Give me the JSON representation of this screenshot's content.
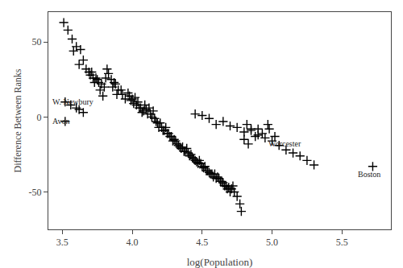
{
  "chart_data": {
    "type": "scatter",
    "xlabel": "log(Population)",
    "ylabel": "Difference Between Ranks",
    "xlim": [
      3.4,
      5.85
    ],
    "ylim": [
      -75,
      70
    ],
    "xticks": [
      3.5,
      {
        "value": 4.0,
        "label": "4.0"
      },
      4.5,
      {
        "value": 5.0,
        "label": "5.0"
      },
      5.5
    ],
    "yticks": [
      -50,
      0,
      50
    ],
    "grid": false,
    "marker": "plus",
    "color": "black",
    "annotations": [
      {
        "text": "W. Newbury",
        "x": 3.42,
        "y": 10
      },
      {
        "text": "Avon",
        "x": 3.42,
        "y": -3
      },
      {
        "text": "Worcester",
        "x": 4.96,
        "y": -18
      },
      {
        "text": "Boston",
        "x": 5.6,
        "y": -38
      }
    ],
    "x": [
      3.51,
      3.54,
      3.57,
      3.6,
      3.58,
      3.63,
      3.65,
      3.62,
      3.67,
      3.69,
      3.7,
      3.72,
      3.71,
      3.74,
      3.73,
      3.75,
      3.76,
      3.78,
      3.77,
      3.8,
      3.79,
      3.52,
      3.56,
      3.6,
      3.52,
      3.62,
      3.65,
      3.82,
      3.83,
      3.81,
      3.85,
      3.87,
      3.86,
      3.88,
      3.9,
      3.89,
      3.92,
      3.93,
      3.95,
      3.97,
      3.98,
      3.99,
      4.0,
      4.01,
      4.02,
      4.03,
      4.04,
      4.05,
      4.06,
      4.07,
      4.08,
      4.09,
      4.1,
      4.11,
      4.12,
      4.13,
      4.14,
      4.15,
      4.16,
      4.17,
      4.18,
      4.19,
      4.2,
      4.21,
      4.22,
      4.23,
      4.24,
      4.25,
      4.26,
      4.27,
      4.28,
      4.29,
      4.3,
      4.31,
      4.32,
      4.33,
      4.34,
      4.35,
      4.36,
      4.37,
      4.38,
      4.39,
      4.4,
      4.41,
      4.42,
      4.43,
      4.44,
      4.45,
      4.46,
      4.47,
      4.48,
      4.49,
      4.5,
      4.51,
      4.52,
      4.53,
      4.54,
      4.55,
      4.56,
      4.57,
      4.58,
      4.59,
      4.6,
      4.61,
      4.62,
      4.63,
      4.64,
      4.65,
      4.66,
      4.67,
      4.68,
      4.69,
      4.7,
      4.71,
      4.72,
      4.73,
      4.75,
      4.77,
      4.78,
      4.45,
      4.5,
      4.55,
      4.6,
      4.65,
      4.7,
      4.75,
      4.8,
      4.85,
      4.88,
      4.9,
      4.82,
      4.85,
      4.9,
      4.93,
      4.95,
      4.97,
      4.98,
      5.0,
      5.02,
      5.05,
      5.1,
      5.15,
      5.2,
      5.25,
      5.3,
      4.8,
      4.83,
      5.72
    ],
    "values": [
      63,
      58,
      52,
      47,
      44,
      45,
      38,
      35,
      32,
      30,
      28,
      26,
      30,
      26,
      23,
      25,
      23,
      22,
      18,
      20,
      14,
      10,
      8,
      6,
      -3,
      5,
      3,
      32,
      29,
      26,
      25,
      23,
      20,
      22,
      18,
      15,
      18,
      15,
      12,
      16,
      14,
      11,
      12,
      9,
      13,
      8,
      10,
      6,
      6,
      3,
      4,
      8,
      5,
      2,
      6,
      2,
      0,
      4,
      -1,
      -3,
      -4,
      -7,
      -4,
      -7,
      -9,
      -9,
      -7,
      -11,
      -11,
      -13,
      -13,
      -16,
      -15,
      -16,
      -18,
      -19,
      -20,
      -21,
      -20,
      -23,
      -23,
      -21,
      -24,
      -26,
      -25,
      -27,
      -28,
      -29,
      -30,
      -31,
      -29,
      -31,
      -33,
      -34,
      -33,
      -36,
      -36,
      -37,
      -38,
      -38,
      -40,
      -38,
      -41,
      -40,
      -41,
      -43,
      -43,
      -44,
      -46,
      -46,
      -48,
      -47,
      -50,
      -48,
      -46,
      -50,
      -53,
      -58,
      -63,
      2,
      1,
      -1,
      -5,
      -3,
      -6,
      -7,
      -10,
      -9,
      -13,
      -12,
      -5,
      -8,
      -8,
      -11,
      -14,
      -5,
      -8,
      -16,
      -13,
      -19,
      -22,
      -24,
      -26,
      -29,
      -32,
      -15,
      -18,
      -33
    ]
  }
}
